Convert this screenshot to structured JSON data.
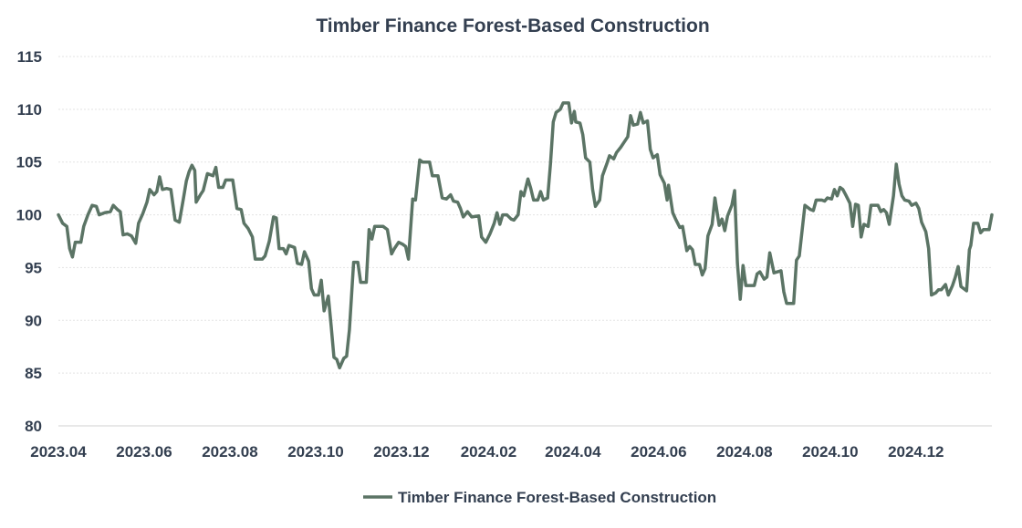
{
  "chart_data": {
    "type": "line",
    "title": "Timber Finance Forest-Based Construction",
    "xlabel": "",
    "ylabel": "",
    "ylim": [
      80,
      115
    ],
    "yticks": [
      80,
      85,
      90,
      95,
      100,
      105,
      110,
      115
    ],
    "x_ticks": [
      "2023.04",
      "2023.06",
      "2023.08",
      "2023.10",
      "2023.12",
      "2024.02",
      "2024.04",
      "2024.06",
      "2024.08",
      "2024.10",
      "2024.12"
    ],
    "grid": true,
    "legend": "bottom",
    "series": [
      {
        "name": "Timber Finance Forest-Based Construction",
        "color": "#5b7465",
        "points": [
          [
            "2023-04-01",
            100.0
          ],
          [
            "2023-04-04",
            99.2
          ],
          [
            "2023-04-07",
            98.9
          ],
          [
            "2023-04-09",
            96.8
          ],
          [
            "2023-04-11",
            96.0
          ],
          [
            "2023-04-13",
            97.4
          ],
          [
            "2023-04-17",
            97.4
          ],
          [
            "2023-04-19",
            98.9
          ],
          [
            "2023-04-22",
            100.0
          ],
          [
            "2023-04-25",
            100.9
          ],
          [
            "2023-04-28",
            100.8
          ],
          [
            "2023-04-30",
            100.0
          ],
          [
            "2023-05-04",
            100.2
          ],
          [
            "2023-05-08",
            100.3
          ],
          [
            "2023-05-10",
            100.9
          ],
          [
            "2023-05-13",
            100.5
          ],
          [
            "2023-05-15",
            100.3
          ],
          [
            "2023-05-17",
            98.1
          ],
          [
            "2023-05-20",
            98.2
          ],
          [
            "2023-05-23",
            98.0
          ],
          [
            "2023-05-26",
            97.3
          ],
          [
            "2023-05-28",
            99.2
          ],
          [
            "2023-05-31",
            100.1
          ],
          [
            "2023-06-03",
            101.2
          ],
          [
            "2023-06-05",
            102.4
          ],
          [
            "2023-06-08",
            101.9
          ],
          [
            "2023-06-10",
            102.2
          ],
          [
            "2023-06-12",
            103.6
          ],
          [
            "2023-06-14",
            102.4
          ],
          [
            "2023-06-17",
            102.5
          ],
          [
            "2023-06-20",
            102.4
          ],
          [
            "2023-06-23",
            99.5
          ],
          [
            "2023-06-26",
            99.3
          ],
          [
            "2023-06-29",
            101.6
          ],
          [
            "2023-07-01",
            103.2
          ],
          [
            "2023-07-03",
            104.1
          ],
          [
            "2023-07-05",
            104.7
          ],
          [
            "2023-07-07",
            104.2
          ],
          [
            "2023-07-08",
            101.2
          ],
          [
            "2023-07-11",
            101.9
          ],
          [
            "2023-07-13",
            102.3
          ],
          [
            "2023-07-16",
            103.9
          ],
          [
            "2023-07-20",
            103.7
          ],
          [
            "2023-07-22",
            104.5
          ],
          [
            "2023-07-24",
            102.6
          ],
          [
            "2023-07-27",
            102.6
          ],
          [
            "2023-07-29",
            103.3
          ],
          [
            "2023-08-03",
            103.3
          ],
          [
            "2023-08-06",
            100.6
          ],
          [
            "2023-08-09",
            100.5
          ],
          [
            "2023-08-11",
            99.2
          ],
          [
            "2023-08-14",
            98.7
          ],
          [
            "2023-08-17",
            97.9
          ],
          [
            "2023-08-19",
            95.8
          ],
          [
            "2023-08-24",
            95.8
          ],
          [
            "2023-08-26",
            96.1
          ],
          [
            "2023-08-29",
            97.5
          ],
          [
            "2023-09-01",
            99.8
          ],
          [
            "2023-09-03",
            99.7
          ],
          [
            "2023-09-05",
            96.8
          ],
          [
            "2023-09-08",
            96.8
          ],
          [
            "2023-09-10",
            96.3
          ],
          [
            "2023-09-12",
            97.1
          ],
          [
            "2023-09-16",
            96.9
          ],
          [
            "2023-09-18",
            95.4
          ],
          [
            "2023-09-21",
            95.3
          ],
          [
            "2023-09-23",
            96.5
          ],
          [
            "2023-09-26",
            95.6
          ],
          [
            "2023-09-28",
            93.0
          ],
          [
            "2023-09-30",
            92.4
          ],
          [
            "2023-10-03",
            92.4
          ],
          [
            "2023-10-05",
            93.8
          ],
          [
            "2023-10-07",
            90.9
          ],
          [
            "2023-10-10",
            92.3
          ],
          [
            "2023-10-12",
            89.5
          ],
          [
            "2023-10-14",
            86.5
          ],
          [
            "2023-10-16",
            86.3
          ],
          [
            "2023-10-18",
            85.5
          ],
          [
            "2023-10-21",
            86.4
          ],
          [
            "2023-10-23",
            86.6
          ],
          [
            "2023-10-25",
            89.1
          ],
          [
            "2023-10-28",
            95.5
          ],
          [
            "2023-10-31",
            95.5
          ],
          [
            "2023-11-02",
            93.6
          ],
          [
            "2023-11-06",
            93.6
          ],
          [
            "2023-11-08",
            98.6
          ],
          [
            "2023-11-10",
            97.7
          ],
          [
            "2023-11-12",
            98.9
          ],
          [
            "2023-11-18",
            98.9
          ],
          [
            "2023-11-21",
            98.6
          ],
          [
            "2023-11-24",
            96.3
          ],
          [
            "2023-11-26",
            96.8
          ],
          [
            "2023-11-29",
            97.4
          ],
          [
            "2023-12-02",
            97.2
          ],
          [
            "2023-12-04",
            97.0
          ],
          [
            "2023-12-06",
            95.8
          ],
          [
            "2023-12-09",
            101.5
          ],
          [
            "2023-12-11",
            101.4
          ],
          [
            "2023-12-14",
            105.2
          ],
          [
            "2023-12-16",
            105.0
          ],
          [
            "2023-12-21",
            105.0
          ],
          [
            "2023-12-23",
            103.7
          ],
          [
            "2023-12-27",
            103.7
          ],
          [
            "2023-12-30",
            101.6
          ],
          [
            "2024-01-02",
            101.5
          ],
          [
            "2024-01-05",
            101.9
          ],
          [
            "2024-01-07",
            101.3
          ],
          [
            "2024-01-10",
            101.2
          ],
          [
            "2024-01-12",
            100.6
          ],
          [
            "2024-01-14",
            99.8
          ],
          [
            "2024-01-17",
            100.3
          ],
          [
            "2024-01-20",
            99.8
          ],
          [
            "2024-01-25",
            99.9
          ],
          [
            "2024-01-27",
            97.9
          ],
          [
            "2024-01-30",
            97.4
          ],
          [
            "2024-02-02",
            98.2
          ],
          [
            "2024-02-05",
            99.2
          ],
          [
            "2024-02-07",
            100.2
          ],
          [
            "2024-02-09",
            99.1
          ],
          [
            "2024-02-11",
            100.0
          ],
          [
            "2024-02-14",
            100.0
          ],
          [
            "2024-02-17",
            99.6
          ],
          [
            "2024-02-19",
            99.5
          ],
          [
            "2024-02-22",
            100.0
          ],
          [
            "2024-02-24",
            102.2
          ],
          [
            "2024-02-26",
            101.8
          ],
          [
            "2024-02-29",
            103.4
          ],
          [
            "2024-03-02",
            102.5
          ],
          [
            "2024-03-04",
            101.4
          ],
          [
            "2024-03-07",
            101.4
          ],
          [
            "2024-03-09",
            102.2
          ],
          [
            "2024-03-11",
            101.4
          ],
          [
            "2024-03-14",
            101.6
          ],
          [
            "2024-03-16",
            104.8
          ],
          [
            "2024-03-18",
            108.8
          ],
          [
            "2024-03-20",
            109.7
          ],
          [
            "2024-03-23",
            110.0
          ],
          [
            "2024-03-25",
            110.6
          ],
          [
            "2024-03-29",
            110.6
          ],
          [
            "2024-03-31",
            108.7
          ],
          [
            "2024-04-02",
            109.8
          ],
          [
            "2024-04-03",
            108.8
          ],
          [
            "2024-04-06",
            108.7
          ],
          [
            "2024-04-08",
            107.6
          ],
          [
            "2024-04-10",
            105.4
          ],
          [
            "2024-04-13",
            105.0
          ],
          [
            "2024-04-15",
            102.4
          ],
          [
            "2024-04-17",
            100.8
          ],
          [
            "2024-04-20",
            101.4
          ],
          [
            "2024-04-22",
            103.7
          ],
          [
            "2024-04-25",
            104.8
          ],
          [
            "2024-04-27",
            105.6
          ],
          [
            "2024-04-30",
            105.3
          ],
          [
            "2024-05-02",
            105.9
          ],
          [
            "2024-05-05",
            106.4
          ],
          [
            "2024-05-08",
            107.0
          ],
          [
            "2024-05-10",
            107.4
          ],
          [
            "2024-05-12",
            109.4
          ],
          [
            "2024-05-14",
            108.5
          ],
          [
            "2024-05-17",
            108.6
          ],
          [
            "2024-05-19",
            109.7
          ],
          [
            "2024-05-21",
            108.7
          ],
          [
            "2024-05-24",
            108.9
          ],
          [
            "2024-05-26",
            106.2
          ],
          [
            "2024-05-28",
            105.4
          ],
          [
            "2024-05-31",
            105.7
          ],
          [
            "2024-06-02",
            103.8
          ],
          [
            "2024-06-05",
            103.0
          ],
          [
            "2024-06-07",
            101.4
          ],
          [
            "2024-06-08",
            102.8
          ],
          [
            "2024-06-11",
            100.2
          ],
          [
            "2024-06-13",
            99.6
          ],
          [
            "2024-06-16",
            98.8
          ],
          [
            "2024-06-18",
            98.9
          ],
          [
            "2024-06-21",
            96.6
          ],
          [
            "2024-06-23",
            97.0
          ],
          [
            "2024-06-25",
            96.7
          ],
          [
            "2024-06-27",
            95.3
          ],
          [
            "2024-06-30",
            95.3
          ],
          [
            "2024-07-02",
            94.3
          ],
          [
            "2024-07-04",
            94.9
          ],
          [
            "2024-07-06",
            98.0
          ],
          [
            "2024-07-09",
            99.1
          ],
          [
            "2024-07-11",
            101.6
          ],
          [
            "2024-07-14",
            99.0
          ],
          [
            "2024-07-16",
            99.6
          ],
          [
            "2024-07-18",
            98.5
          ],
          [
            "2024-07-20",
            99.9
          ],
          [
            "2024-07-23",
            100.9
          ],
          [
            "2024-07-25",
            102.3
          ],
          [
            "2024-07-27",
            95.4
          ],
          [
            "2024-07-29",
            92.0
          ],
          [
            "2024-07-31",
            95.2
          ],
          [
            "2024-08-02",
            93.3
          ],
          [
            "2024-08-08",
            93.3
          ],
          [
            "2024-08-10",
            94.4
          ],
          [
            "2024-08-12",
            94.6
          ],
          [
            "2024-08-15",
            93.9
          ],
          [
            "2024-08-17",
            94.1
          ],
          [
            "2024-08-19",
            96.4
          ],
          [
            "2024-08-22",
            94.5
          ],
          [
            "2024-08-27",
            94.7
          ],
          [
            "2024-08-29",
            92.7
          ],
          [
            "2024-08-31",
            91.6
          ],
          [
            "2024-09-05",
            91.6
          ],
          [
            "2024-09-07",
            95.7
          ],
          [
            "2024-09-09",
            96.1
          ],
          [
            "2024-09-11",
            98.5
          ],
          [
            "2024-09-13",
            100.9
          ],
          [
            "2024-09-17",
            100.5
          ],
          [
            "2024-09-19",
            100.4
          ],
          [
            "2024-09-21",
            101.4
          ],
          [
            "2024-09-25",
            101.4
          ],
          [
            "2024-09-27",
            101.3
          ],
          [
            "2024-09-29",
            101.6
          ],
          [
            "2024-10-02",
            101.5
          ],
          [
            "2024-10-04",
            102.4
          ],
          [
            "2024-10-06",
            101.8
          ],
          [
            "2024-10-08",
            102.6
          ],
          [
            "2024-10-10",
            102.4
          ],
          [
            "2024-10-12",
            101.9
          ],
          [
            "2024-10-15",
            101.1
          ],
          [
            "2024-10-17",
            98.9
          ],
          [
            "2024-10-19",
            101.0
          ],
          [
            "2024-10-21",
            100.9
          ],
          [
            "2024-10-23",
            97.9
          ],
          [
            "2024-10-25",
            99.1
          ],
          [
            "2024-10-28",
            98.9
          ],
          [
            "2024-10-30",
            100.9
          ],
          [
            "2024-11-04",
            100.9
          ],
          [
            "2024-11-06",
            100.3
          ],
          [
            "2024-11-08",
            100.5
          ],
          [
            "2024-11-10",
            100.2
          ],
          [
            "2024-11-12",
            99.1
          ],
          [
            "2024-11-15",
            101.8
          ],
          [
            "2024-11-17",
            104.8
          ],
          [
            "2024-11-19",
            102.9
          ],
          [
            "2024-11-21",
            101.8
          ],
          [
            "2024-11-23",
            101.4
          ],
          [
            "2024-11-26",
            101.3
          ],
          [
            "2024-11-28",
            100.9
          ],
          [
            "2024-12-01",
            101.1
          ],
          [
            "2024-12-03",
            100.6
          ],
          [
            "2024-12-05",
            99.3
          ],
          [
            "2024-12-08",
            98.4
          ],
          [
            "2024-12-10",
            96.8
          ],
          [
            "2024-12-12",
            92.4
          ],
          [
            "2024-12-15",
            92.6
          ],
          [
            "2024-12-17",
            92.9
          ],
          [
            "2024-12-19",
            92.9
          ],
          [
            "2024-12-22",
            93.4
          ],
          [
            "2024-12-24",
            92.4
          ],
          [
            "2024-12-27",
            93.3
          ],
          [
            "2024-12-29",
            94.1
          ],
          [
            "2024-12-31",
            95.1
          ],
          [
            "2025-01-02",
            93.2
          ],
          [
            "2025-01-06",
            92.8
          ],
          [
            "2025-01-08",
            96.7
          ],
          [
            "2025-01-09",
            97.1
          ],
          [
            "2025-01-11",
            99.2
          ],
          [
            "2025-01-14",
            99.2
          ],
          [
            "2025-01-16",
            98.3
          ],
          [
            "2025-01-18",
            98.6
          ],
          [
            "2025-01-22",
            98.6
          ],
          [
            "2025-01-24",
            100.0
          ]
        ]
      }
    ]
  }
}
